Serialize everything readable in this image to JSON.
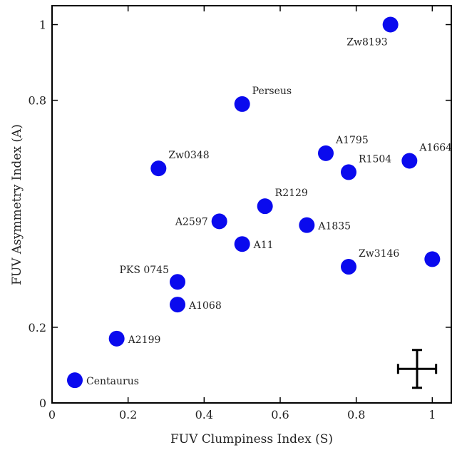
{
  "chart_data": {
    "type": "scatter",
    "title": "",
    "xlabel": "FUV Clumpiness Index (S)",
    "ylabel": "FUV Asymmetry Index (A)",
    "xlim": [
      0,
      1.05
    ],
    "ylim": [
      0,
      1.05
    ],
    "x_ticks": [
      0,
      0.2,
      0.4,
      0.6,
      0.8,
      1
    ],
    "x_tick_labels": [
      "0",
      "0.2",
      "0.4",
      "0.6",
      "0.8",
      "1"
    ],
    "y_ticks": [
      0,
      0.2,
      0.8,
      1
    ],
    "y_tick_labels": [
      "0",
      "0.2",
      "0.8",
      "1"
    ],
    "grid": false,
    "marker_color": "#0a0aee",
    "points": [
      {
        "label": "Zw8193",
        "x": 0.89,
        "y": 1.0,
        "label_side": "below-left"
      },
      {
        "label": "Perseus",
        "x": 0.5,
        "y": 0.79,
        "label_side": "upper-right"
      },
      {
        "label": "A1795",
        "x": 0.72,
        "y": 0.66,
        "label_side": "upper-right"
      },
      {
        "label": "A1664",
        "x": 0.94,
        "y": 0.64,
        "label_side": "upper-right"
      },
      {
        "label": "R1504",
        "x": 0.78,
        "y": 0.61,
        "label_side": "upper-right"
      },
      {
        "label": "Zw0348",
        "x": 0.28,
        "y": 0.62,
        "label_side": "upper-right"
      },
      {
        "label": "R2129",
        "x": 0.56,
        "y": 0.52,
        "label_side": "upper-right"
      },
      {
        "label": "A2597",
        "x": 0.44,
        "y": 0.48,
        "label_side": "left"
      },
      {
        "label": "A1835",
        "x": 0.67,
        "y": 0.47,
        "label_side": "right"
      },
      {
        "label": "A11",
        "x": 0.5,
        "y": 0.42,
        "label_side": "right"
      },
      {
        "label": "Zw3146",
        "x": 0.78,
        "y": 0.36,
        "label_side": "upper-right"
      },
      {
        "label": "",
        "x": 1.0,
        "y": 0.38,
        "label_side": "none"
      },
      {
        "label": "PKS 0745",
        "x": 0.33,
        "y": 0.32,
        "label_side": "upper-left"
      },
      {
        "label": "A1068",
        "x": 0.33,
        "y": 0.26,
        "label_side": "right"
      },
      {
        "label": "A2199",
        "x": 0.17,
        "y": 0.17,
        "label_side": "right"
      },
      {
        "label": "Centaurus",
        "x": 0.06,
        "y": 0.06,
        "label_side": "right"
      }
    ],
    "error_bar_example": {
      "x": 0.96,
      "y": 0.09,
      "x_error": 0.05,
      "y_error": 0.05
    }
  }
}
